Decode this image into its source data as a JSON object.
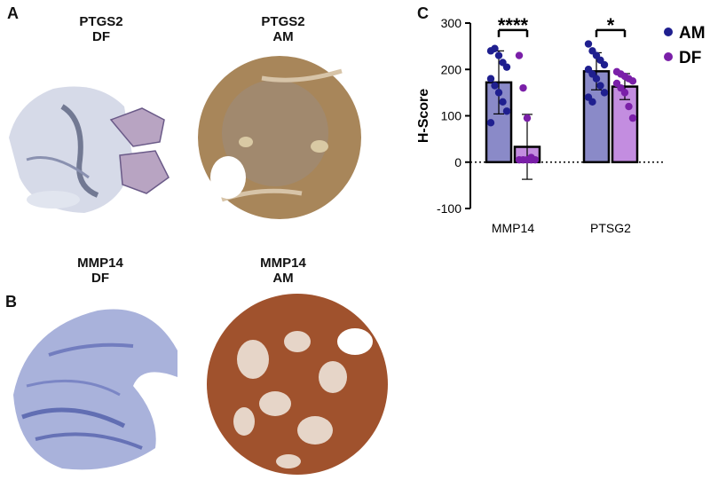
{
  "panels": {
    "a": {
      "letter": "A"
    },
    "b": {
      "letter": "B"
    },
    "c": {
      "letter": "C"
    }
  },
  "tissue_cores": [
    {
      "line1": "PTGS2",
      "line2": "DF",
      "stain": "blue-hematoxylin"
    },
    {
      "line1": "PTGS2",
      "line2": "AM",
      "stain": "brown-dab"
    },
    {
      "line1": "MMP14",
      "line2": "DF",
      "stain": "blue-hematoxylin"
    },
    {
      "line1": "MMP14",
      "line2": "AM",
      "stain": "brown-dab"
    }
  ],
  "colors": {
    "am_point": "#1f1f8f",
    "am_bar": "#8a8ac8",
    "df_point": "#7a1fa8",
    "df_bar": "#c38de0",
    "ptgs2_df_tissue": "#b8bfd6",
    "ptgs2_am_tissue": "#a8865a",
    "mmp14_df_tissue": "#5866b0",
    "mmp14_am_tissue": "#a0522d"
  },
  "chart_data": {
    "type": "bar",
    "ylabel": "H-Score",
    "ylim": [
      -100,
      300
    ],
    "yticks": [
      -100,
      0,
      100,
      200,
      300
    ],
    "categories": [
      "MMP14",
      "PTSG2"
    ],
    "reference_line": 0,
    "legend_position": "top-right",
    "series": [
      {
        "name": "AM",
        "values": [
          172,
          196
        ],
        "sd": [
          68,
          40
        ],
        "points": [
          [
            240,
            245,
            230,
            215,
            205,
            180,
            165,
            150,
            130,
            110,
            85
          ],
          [
            255,
            240,
            230,
            220,
            210,
            200,
            190,
            180,
            165,
            150,
            140,
            130
          ]
        ]
      },
      {
        "name": "DF",
        "values": [
          33,
          163
        ],
        "sd": [
          70,
          28
        ],
        "points": [
          [
            230,
            160,
            95,
            10,
            5,
            5,
            5,
            5,
            5
          ],
          [
            195,
            190,
            185,
            180,
            175,
            170,
            160,
            150,
            120,
            95
          ]
        ]
      }
    ],
    "significance": [
      {
        "category": "MMP14",
        "label": "****"
      },
      {
        "category": "PTSG2",
        "label": "*"
      }
    ]
  }
}
